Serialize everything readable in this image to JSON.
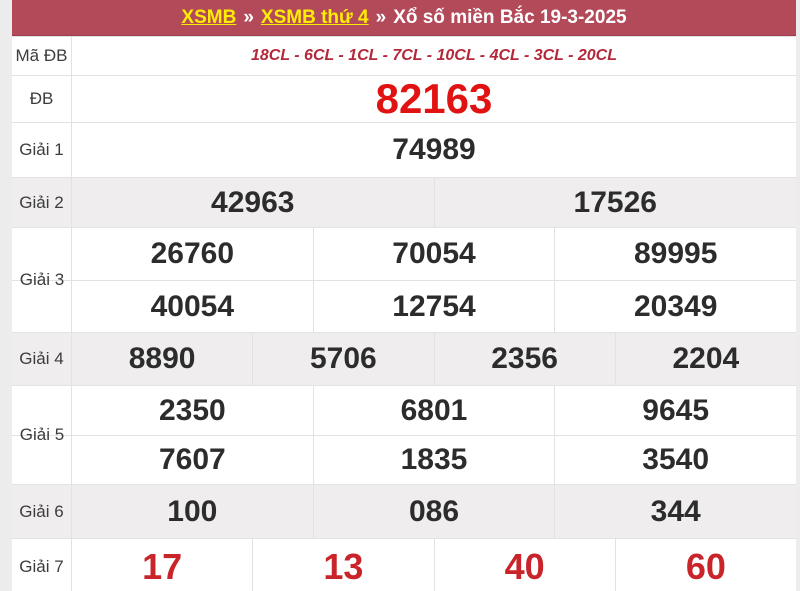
{
  "header": {
    "link1": "XSMB",
    "separator1": "»",
    "link2": "XSMB thứ 4",
    "separator2": "»",
    "title": "Xổ số miền Bắc 19-3-2025"
  },
  "table": {
    "rows": [
      {
        "label": "Mã ĐB",
        "values": [
          "18CL - 6CL - 1CL - 7CL - 10CL - 4CL - 3CL - 20CL"
        ]
      },
      {
        "label": "ĐB",
        "values": [
          "82163"
        ]
      },
      {
        "label": "Giải 1",
        "values": [
          "74989"
        ]
      },
      {
        "label": "Giải 2",
        "values": [
          "42963",
          "17526"
        ]
      },
      {
        "label": "Giải 3",
        "values": [
          "26760",
          "70054",
          "89995",
          "40054",
          "12754",
          "20349"
        ]
      },
      {
        "label": "Giải 4",
        "values": [
          "8890",
          "5706",
          "2356",
          "2204"
        ]
      },
      {
        "label": "Giải 5",
        "values": [
          "2350",
          "6801",
          "9645",
          "7607",
          "1835",
          "3540"
        ]
      },
      {
        "label": "Giải 6",
        "values": [
          "100",
          "086",
          "344"
        ]
      },
      {
        "label": "Giải 7",
        "values": [
          "17",
          "13",
          "40",
          "60"
        ]
      }
    ]
  },
  "colors": {
    "header_bg": "#b34a5a",
    "link_yellow": "#ffee00",
    "special_prize_red": "#e01212",
    "code_red": "#b3283a",
    "g7_red": "#c9242a",
    "number_dark": "#2c2c2c",
    "alt_row_bg": "#efeded",
    "border": "#e2e2e2",
    "page_bg": "#ececec"
  }
}
